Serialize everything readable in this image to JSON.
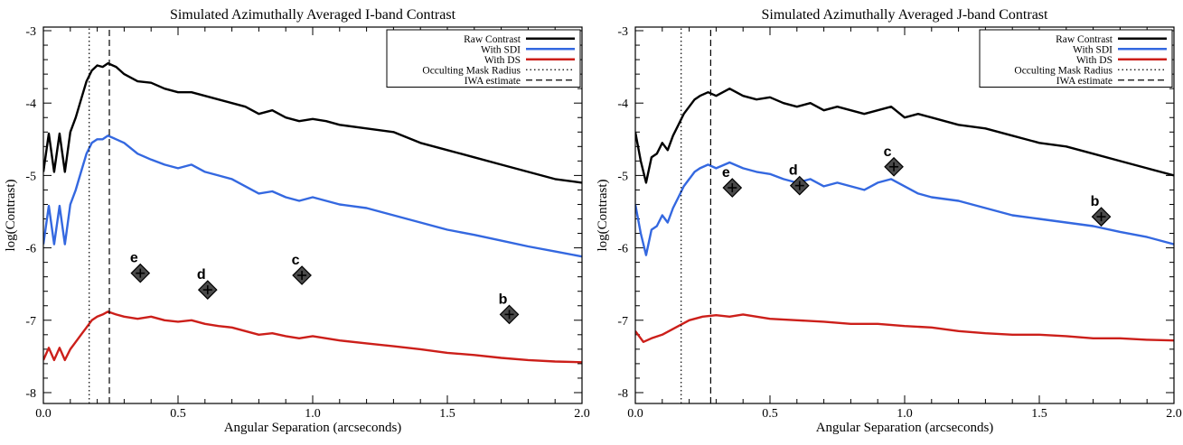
{
  "chart_data": [
    {
      "type": "line",
      "title": "Simulated Azimuthally Averaged I-band Contrast",
      "xlabel": "Angular Separation (arcseconds)",
      "ylabel": "log(Contrast)",
      "xlim": [
        0.0,
        2.0
      ],
      "ylim": [
        -8.15,
        -2.95
      ],
      "xticks": [
        "0.0",
        "0.5",
        "1.0",
        "1.5",
        "2.0"
      ],
      "yticks": [
        "-3",
        "-4",
        "-5",
        "-6",
        "-7",
        "-8"
      ],
      "xtick_values": [
        0.0,
        0.5,
        1.0,
        1.5,
        2.0
      ],
      "ytick_values": [
        -3,
        -4,
        -5,
        -6,
        -7,
        -8
      ],
      "legend_position": "top-right",
      "grid": false,
      "series": [
        {
          "name": "Raw Contrast",
          "color": "#000000",
          "style": "solid",
          "x": [
            0.0,
            0.02,
            0.04,
            0.06,
            0.08,
            0.1,
            0.12,
            0.14,
            0.16,
            0.18,
            0.2,
            0.22,
            0.24,
            0.27,
            0.3,
            0.35,
            0.4,
            0.45,
            0.5,
            0.55,
            0.6,
            0.65,
            0.7,
            0.75,
            0.8,
            0.85,
            0.9,
            0.95,
            1.0,
            1.05,
            1.1,
            1.2,
            1.3,
            1.4,
            1.5,
            1.6,
            1.7,
            1.8,
            1.9,
            2.0
          ],
          "y": [
            -4.95,
            -4.42,
            -4.95,
            -4.42,
            -4.95,
            -4.4,
            -4.2,
            -3.95,
            -3.7,
            -3.55,
            -3.48,
            -3.5,
            -3.45,
            -3.5,
            -3.6,
            -3.7,
            -3.72,
            -3.8,
            -3.85,
            -3.85,
            -3.9,
            -3.95,
            -4.0,
            -4.05,
            -4.15,
            -4.1,
            -4.2,
            -4.25,
            -4.22,
            -4.25,
            -4.3,
            -4.35,
            -4.4,
            -4.55,
            -4.65,
            -4.75,
            -4.85,
            -4.95,
            -5.05,
            -5.1
          ]
        },
        {
          "name": "With SDI",
          "color": "#3468e0",
          "style": "solid",
          "x": [
            0.0,
            0.02,
            0.04,
            0.06,
            0.08,
            0.1,
            0.12,
            0.14,
            0.16,
            0.18,
            0.2,
            0.22,
            0.24,
            0.27,
            0.3,
            0.35,
            0.4,
            0.45,
            0.5,
            0.55,
            0.6,
            0.65,
            0.7,
            0.75,
            0.8,
            0.85,
            0.9,
            0.95,
            1.0,
            1.05,
            1.1,
            1.2,
            1.3,
            1.4,
            1.5,
            1.6,
            1.7,
            1.8,
            1.9,
            2.0
          ],
          "y": [
            -5.95,
            -5.42,
            -5.95,
            -5.42,
            -5.95,
            -5.4,
            -5.2,
            -4.95,
            -4.7,
            -4.55,
            -4.5,
            -4.5,
            -4.45,
            -4.5,
            -4.55,
            -4.7,
            -4.78,
            -4.85,
            -4.9,
            -4.85,
            -4.95,
            -5.0,
            -5.05,
            -5.15,
            -5.25,
            -5.22,
            -5.3,
            -5.35,
            -5.3,
            -5.35,
            -5.4,
            -5.45,
            -5.55,
            -5.65,
            -5.75,
            -5.82,
            -5.9,
            -5.98,
            -6.05,
            -6.12
          ]
        },
        {
          "name": "With DS",
          "color": "#cc1f1a",
          "style": "solid",
          "x": [
            0.0,
            0.02,
            0.04,
            0.06,
            0.08,
            0.1,
            0.12,
            0.14,
            0.16,
            0.18,
            0.2,
            0.22,
            0.24,
            0.27,
            0.3,
            0.35,
            0.4,
            0.45,
            0.5,
            0.55,
            0.6,
            0.65,
            0.7,
            0.75,
            0.8,
            0.85,
            0.9,
            0.95,
            1.0,
            1.1,
            1.2,
            1.3,
            1.4,
            1.5,
            1.6,
            1.7,
            1.8,
            1.9,
            2.0
          ],
          "y": [
            -7.55,
            -7.38,
            -7.55,
            -7.38,
            -7.55,
            -7.4,
            -7.3,
            -7.2,
            -7.1,
            -7.0,
            -6.95,
            -6.92,
            -6.88,
            -6.92,
            -6.95,
            -6.98,
            -6.95,
            -7.0,
            -7.02,
            -7.0,
            -7.05,
            -7.08,
            -7.1,
            -7.15,
            -7.2,
            -7.18,
            -7.22,
            -7.25,
            -7.22,
            -7.28,
            -7.32,
            -7.36,
            -7.4,
            -7.45,
            -7.48,
            -7.52,
            -7.55,
            -7.57,
            -7.58
          ]
        },
        {
          "name": "Occulting Mask Radius",
          "color": "#000000",
          "style": "dotted",
          "x": [
            0.17,
            0.17
          ],
          "y": [
            -8.15,
            -2.95
          ]
        },
        {
          "name": "IWA estimate",
          "color": "#000000",
          "style": "dashed",
          "x": [
            0.245,
            0.245
          ],
          "y": [
            -8.15,
            -2.95
          ]
        }
      ],
      "planets": [
        {
          "label": "e",
          "x": 0.36,
          "y": -6.35
        },
        {
          "label": "d",
          "x": 0.61,
          "y": -6.58
        },
        {
          "label": "c",
          "x": 0.96,
          "y": -6.38
        },
        {
          "label": "b",
          "x": 1.73,
          "y": -6.92
        }
      ]
    },
    {
      "type": "line",
      "title": "Simulated Azimuthally Averaged J-band Contrast",
      "xlabel": "Angular Separation (arcseconds)",
      "ylabel": "log(Contrast)",
      "xlim": [
        0.0,
        2.0
      ],
      "ylim": [
        -8.15,
        -2.95
      ],
      "xticks": [
        "0.0",
        "0.5",
        "1.0",
        "1.5",
        "2.0"
      ],
      "yticks": [
        "-3",
        "-4",
        "-5",
        "-6",
        "-7",
        "-8"
      ],
      "xtick_values": [
        0.0,
        0.5,
        1.0,
        1.5,
        2.0
      ],
      "ytick_values": [
        -3,
        -4,
        -5,
        -6,
        -7,
        -8
      ],
      "legend_position": "top-right",
      "grid": false,
      "series": [
        {
          "name": "Raw Contrast",
          "color": "#000000",
          "style": "solid",
          "x": [
            0.0,
            0.02,
            0.04,
            0.06,
            0.08,
            0.1,
            0.12,
            0.14,
            0.16,
            0.18,
            0.2,
            0.22,
            0.24,
            0.27,
            0.3,
            0.35,
            0.4,
            0.45,
            0.5,
            0.55,
            0.6,
            0.65,
            0.7,
            0.75,
            0.8,
            0.85,
            0.9,
            0.95,
            1.0,
            1.05,
            1.1,
            1.2,
            1.3,
            1.4,
            1.5,
            1.6,
            1.7,
            1.8,
            1.9,
            2.0
          ],
          "y": [
            -4.4,
            -4.8,
            -5.1,
            -4.75,
            -4.7,
            -4.55,
            -4.65,
            -4.45,
            -4.3,
            -4.15,
            -4.05,
            -3.95,
            -3.9,
            -3.85,
            -3.9,
            -3.8,
            -3.9,
            -3.95,
            -3.92,
            -4.0,
            -4.05,
            -4.0,
            -4.1,
            -4.05,
            -4.1,
            -4.15,
            -4.1,
            -4.05,
            -4.2,
            -4.15,
            -4.2,
            -4.3,
            -4.35,
            -4.45,
            -4.55,
            -4.6,
            -4.7,
            -4.8,
            -4.9,
            -5.0
          ]
        },
        {
          "name": "With SDI",
          "color": "#3468e0",
          "style": "solid",
          "x": [
            0.0,
            0.02,
            0.04,
            0.06,
            0.08,
            0.1,
            0.12,
            0.14,
            0.16,
            0.18,
            0.2,
            0.22,
            0.24,
            0.27,
            0.3,
            0.35,
            0.4,
            0.45,
            0.5,
            0.55,
            0.6,
            0.65,
            0.7,
            0.75,
            0.8,
            0.85,
            0.9,
            0.95,
            1.0,
            1.05,
            1.1,
            1.2,
            1.3,
            1.4,
            1.5,
            1.6,
            1.7,
            1.8,
            1.9,
            2.0
          ],
          "y": [
            -5.4,
            -5.8,
            -6.1,
            -5.75,
            -5.7,
            -5.55,
            -5.65,
            -5.45,
            -5.3,
            -5.15,
            -5.05,
            -4.95,
            -4.9,
            -4.85,
            -4.9,
            -4.82,
            -4.9,
            -4.95,
            -4.98,
            -5.05,
            -5.1,
            -5.05,
            -5.15,
            -5.1,
            -5.15,
            -5.2,
            -5.1,
            -5.05,
            -5.15,
            -5.25,
            -5.3,
            -5.35,
            -5.45,
            -5.55,
            -5.6,
            -5.65,
            -5.7,
            -5.78,
            -5.85,
            -5.95
          ]
        },
        {
          "name": "With DS",
          "color": "#cc1f1a",
          "style": "solid",
          "x": [
            0.0,
            0.03,
            0.06,
            0.1,
            0.15,
            0.2,
            0.25,
            0.3,
            0.35,
            0.4,
            0.5,
            0.6,
            0.7,
            0.8,
            0.9,
            1.0,
            1.1,
            1.2,
            1.3,
            1.4,
            1.5,
            1.6,
            1.7,
            1.8,
            1.9,
            2.0
          ],
          "y": [
            -7.15,
            -7.3,
            -7.25,
            -7.2,
            -7.1,
            -7.0,
            -6.95,
            -6.93,
            -6.95,
            -6.92,
            -6.98,
            -7.0,
            -7.02,
            -7.05,
            -7.05,
            -7.08,
            -7.1,
            -7.15,
            -7.18,
            -7.2,
            -7.2,
            -7.22,
            -7.25,
            -7.25,
            -7.27,
            -7.28
          ]
        },
        {
          "name": "Occulting Mask Radius",
          "color": "#000000",
          "style": "dotted",
          "x": [
            0.17,
            0.17
          ],
          "y": [
            -8.15,
            -2.95
          ]
        },
        {
          "name": "IWA estimate",
          "color": "#000000",
          "style": "dashed",
          "x": [
            0.28,
            0.28
          ],
          "y": [
            -8.15,
            -2.95
          ]
        }
      ],
      "planets": [
        {
          "label": "e",
          "x": 0.36,
          "y": -5.17
        },
        {
          "label": "d",
          "x": 0.61,
          "y": -5.14
        },
        {
          "label": "c",
          "x": 0.96,
          "y": -4.88
        },
        {
          "label": "b",
          "x": 1.73,
          "y": -5.57
        }
      ]
    }
  ]
}
